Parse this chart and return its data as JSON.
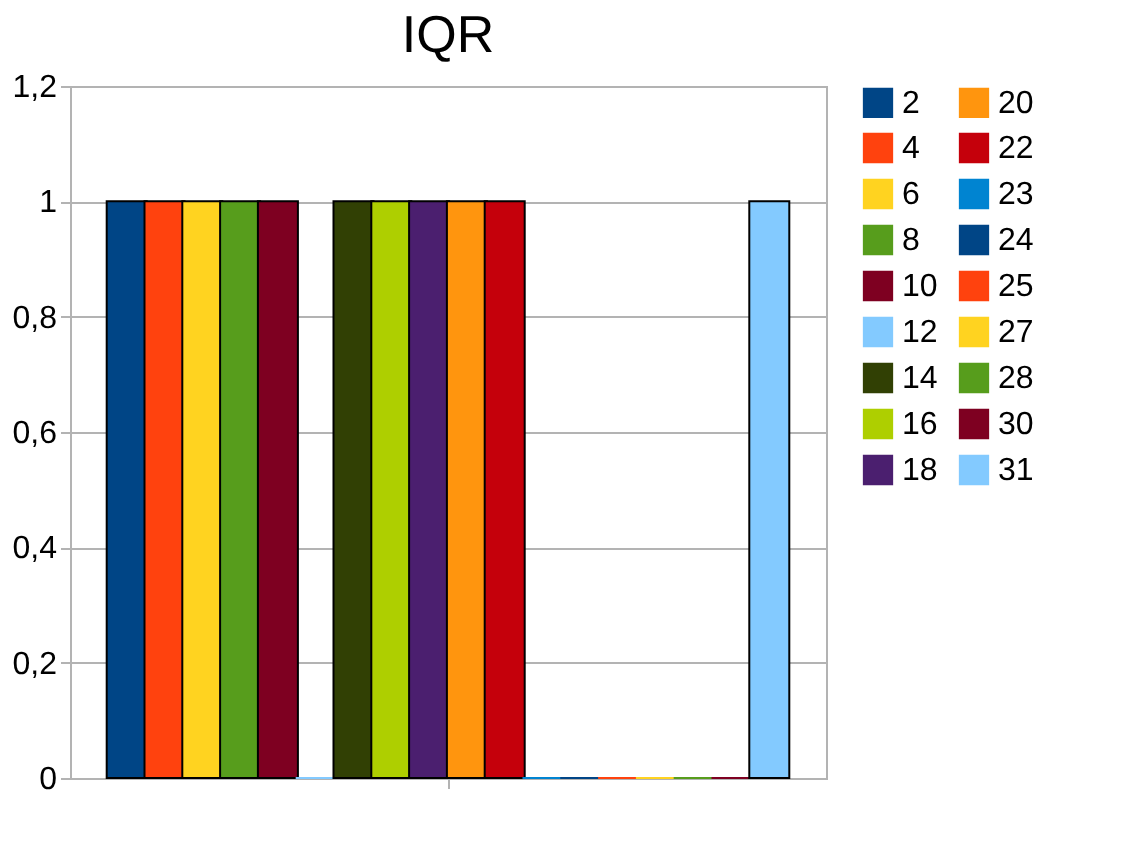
{
  "chart_data": {
    "type": "bar",
    "title": "IQR",
    "categories": [
      null
    ],
    "series": [
      {
        "name": "2",
        "color": "#004586",
        "values": [
          1
        ]
      },
      {
        "name": "4",
        "color": "#ff420e",
        "values": [
          1
        ]
      },
      {
        "name": "6",
        "color": "#ffd320",
        "values": [
          1
        ]
      },
      {
        "name": "8",
        "color": "#579d1c",
        "values": [
          1
        ]
      },
      {
        "name": "10",
        "color": "#7e0021",
        "values": [
          1
        ]
      },
      {
        "name": "12",
        "color": "#83caff",
        "values": [
          0
        ]
      },
      {
        "name": "14",
        "color": "#314004",
        "values": [
          1
        ]
      },
      {
        "name": "16",
        "color": "#aecf00",
        "values": [
          1
        ]
      },
      {
        "name": "18",
        "color": "#4b1f6f",
        "values": [
          1
        ]
      },
      {
        "name": "20",
        "color": "#ff950e",
        "values": [
          1
        ]
      },
      {
        "name": "22",
        "color": "#c5000b",
        "values": [
          1
        ]
      },
      {
        "name": "23",
        "color": "#0084d1",
        "values": [
          0
        ]
      },
      {
        "name": "24",
        "color": "#004586",
        "values": [
          0
        ]
      },
      {
        "name": "25",
        "color": "#ff420e",
        "values": [
          0
        ]
      },
      {
        "name": "27",
        "color": "#ffd320",
        "values": [
          0
        ]
      },
      {
        "name": "28",
        "color": "#579d1c",
        "values": [
          0
        ]
      },
      {
        "name": "30",
        "color": "#7e0021",
        "values": [
          0
        ]
      },
      {
        "name": "31",
        "color": "#83caff",
        "values": [
          1
        ]
      }
    ],
    "ylim": [
      0,
      1.2
    ],
    "yticks": [
      {
        "value": 0,
        "label": "0"
      },
      {
        "value": 0.2,
        "label": "0,2"
      },
      {
        "value": 0.4,
        "label": "0,4"
      },
      {
        "value": 0.6,
        "label": "0,6"
      },
      {
        "value": 0.8,
        "label": "0,8"
      },
      {
        "value": 1,
        "label": "1"
      },
      {
        "value": 1.2,
        "label": "1,2"
      }
    ],
    "grid": "y",
    "legend": "right"
  }
}
